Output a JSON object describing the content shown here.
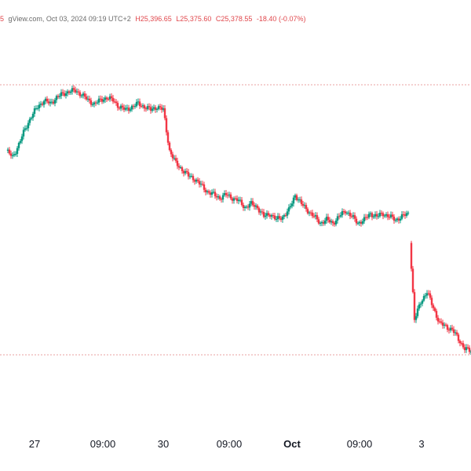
{
  "header": {
    "open_partial": "5",
    "source_line": "gView.com, Oct 03, 2024 09:19 UTC+2",
    "high": "H25,396.65",
    "low": "L25,375.60",
    "close": "C25,378.55",
    "change": "-18.40 (-0.07%)"
  },
  "colors": {
    "up": "#089981",
    "down": "#f23645",
    "text": "#131722",
    "guide": "#e8a0a0"
  },
  "chart_data": {
    "type": "candlestick",
    "title": "",
    "xlabel": "",
    "ylabel": "",
    "x_tick_labels": [
      {
        "label": "27",
        "bold": false
      },
      {
        "label": "09:00",
        "bold": false
      },
      {
        "label": "30",
        "bold": false
      },
      {
        "label": "09:00",
        "bold": false
      },
      {
        "label": "Oct",
        "bold": true
      },
      {
        "label": "09:00",
        "bold": false
      },
      {
        "label": "3",
        "bold": false
      }
    ],
    "price_levels": [
      {
        "name": "upper-level",
        "value": 0.93
      },
      {
        "name": "lower-level",
        "value": 0.07
      }
    ],
    "series": {
      "close_path": [
        [
          0,
          0.72
        ],
        [
          1,
          0.7
        ],
        [
          2,
          0.74
        ],
        [
          3,
          0.79
        ],
        [
          4,
          0.83
        ],
        [
          5,
          0.86
        ],
        [
          6,
          0.88
        ],
        [
          7,
          0.87
        ],
        [
          8,
          0.89
        ],
        [
          9,
          0.9
        ],
        [
          10,
          0.91
        ],
        [
          11,
          0.91
        ],
        [
          12,
          0.9
        ],
        [
          13,
          0.88
        ],
        [
          14,
          0.87
        ],
        [
          15,
          0.88
        ],
        [
          16,
          0.89
        ],
        [
          17,
          0.88
        ],
        [
          18,
          0.86
        ],
        [
          19,
          0.85
        ],
        [
          20,
          0.86
        ],
        [
          21,
          0.87
        ],
        [
          22,
          0.86
        ],
        [
          23,
          0.85
        ],
        [
          24,
          0.86
        ],
        [
          25,
          0.85
        ],
        [
          26,
          0.72
        ],
        [
          27,
          0.68
        ],
        [
          28,
          0.66
        ],
        [
          29,
          0.64
        ],
        [
          30,
          0.63
        ],
        [
          31,
          0.61
        ],
        [
          32,
          0.59
        ],
        [
          33,
          0.58
        ],
        [
          34,
          0.57
        ],
        [
          35,
          0.58
        ],
        [
          36,
          0.57
        ],
        [
          37,
          0.56
        ],
        [
          38,
          0.54
        ],
        [
          39,
          0.55
        ],
        [
          40,
          0.54
        ],
        [
          41,
          0.51
        ],
        [
          42,
          0.52
        ],
        [
          43,
          0.5
        ],
        [
          44,
          0.51
        ],
        [
          45,
          0.53
        ],
        [
          46,
          0.58
        ],
        [
          47,
          0.55
        ],
        [
          48,
          0.53
        ],
        [
          49,
          0.51
        ],
        [
          50,
          0.49
        ],
        [
          51,
          0.5
        ],
        [
          52,
          0.49
        ],
        [
          53,
          0.51
        ],
        [
          54,
          0.53
        ],
        [
          55,
          0.51
        ],
        [
          56,
          0.49
        ],
        [
          57,
          0.5
        ],
        [
          58,
          0.52
        ],
        [
          59,
          0.51
        ],
        [
          60,
          0.52
        ],
        [
          61,
          0.51
        ],
        [
          62,
          0.5
        ],
        [
          63,
          0.51
        ],
        [
          64,
          0.52
        ],
        [
          65,
          0.18
        ],
        [
          66,
          0.24
        ],
        [
          67,
          0.27
        ],
        [
          68,
          0.22
        ],
        [
          69,
          0.17
        ],
        [
          70,
          0.16
        ],
        [
          71,
          0.15
        ],
        [
          72,
          0.12
        ],
        [
          73,
          0.09
        ],
        [
          74,
          0.08
        ]
      ]
    }
  }
}
